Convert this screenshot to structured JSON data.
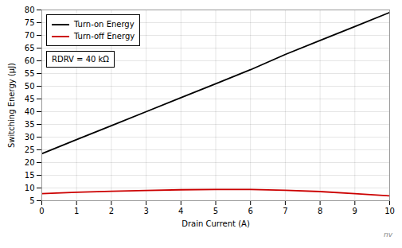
{
  "chart_data": {
    "type": "line",
    "xlabel": "Drain Current (A)",
    "ylabel": "Switching Energy (μJ)",
    "x": [
      0,
      1,
      2,
      3,
      4,
      5,
      6,
      7,
      8,
      9,
      10
    ],
    "series": [
      {
        "name": "Turn-on Energy",
        "color": "#000000",
        "values": [
          23.5,
          29.0,
          34.5,
          40.0,
          45.5,
          51.0,
          56.5,
          62.5,
          68.0,
          73.5,
          79.0
        ]
      },
      {
        "name": "Turn-off Energy",
        "color": "#cc0000",
        "values": [
          7.8,
          8.3,
          8.7,
          9.0,
          9.3,
          9.4,
          9.4,
          9.1,
          8.6,
          7.8,
          6.9
        ]
      }
    ],
    "xlim": [
      0,
      10
    ],
    "ylim": [
      5,
      80
    ],
    "xticks": [
      0,
      1,
      2,
      3,
      4,
      5,
      6,
      7,
      8,
      9,
      10
    ],
    "yticks": [
      5,
      10,
      15,
      20,
      25,
      30,
      35,
      40,
      45,
      50,
      55,
      60,
      65,
      70,
      75,
      80
    ],
    "grid": true,
    "legend": "upper left",
    "annotations": [
      "RDRV = 40 kΩ"
    ],
    "caption": "nv"
  }
}
